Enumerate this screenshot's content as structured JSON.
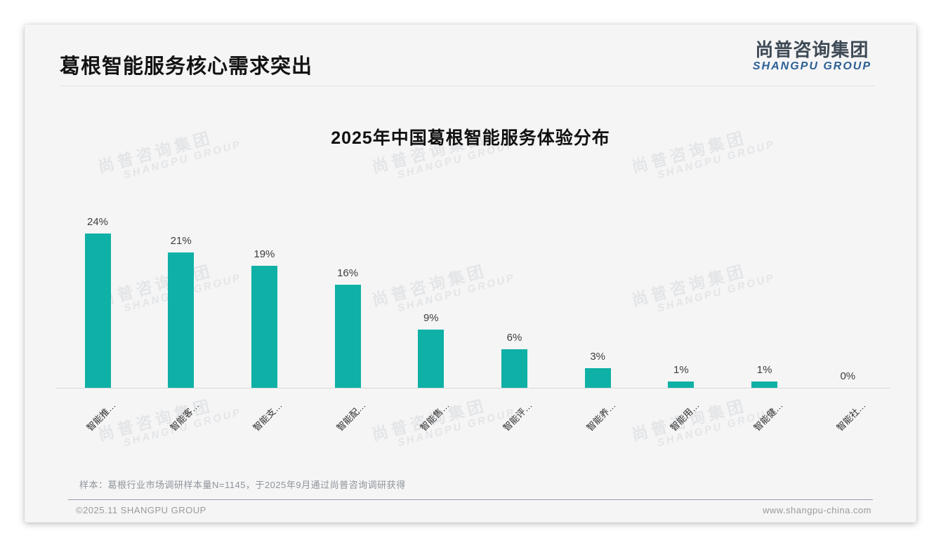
{
  "header": {
    "title": "葛根智能服务核心需求突出"
  },
  "logo": {
    "cn": "尚普咨询集团",
    "en": "SHANGPU GROUP"
  },
  "watermark": {
    "cn": "尚普咨询集团",
    "en": "SHANGPU GROUP"
  },
  "chart_data": {
    "type": "bar",
    "title": "2025年中国葛根智能服务体验分布",
    "categories": [
      "智能推…",
      "智能客…",
      "智能支…",
      "智能配…",
      "智能售…",
      "智能评…",
      "智能养…",
      "智能用…",
      "智能健…",
      "智能社…"
    ],
    "values": [
      24,
      21,
      19,
      16,
      9,
      6,
      3,
      1,
      1,
      0
    ],
    "value_labels": [
      "24%",
      "21%",
      "19%",
      "16%",
      "9%",
      "6%",
      "3%",
      "1%",
      "1%",
      "0%"
    ],
    "bar_color": "#0FB0A5",
    "ylim": [
      0,
      26
    ],
    "grid": false,
    "legend": "none",
    "x_tick_rotation": 45,
    "xlabel": "",
    "ylabel": ""
  },
  "note": {
    "text": "样本：葛根行业市场调研样本量N=1145，于2025年9月通过尚普咨询调研获得"
  },
  "footer": {
    "copyright": "©2025.11 SHANGPU GROUP",
    "website": "www.shangpu-china.com"
  },
  "colors": {
    "bar": "#0FB0A5",
    "logo_blue": "#2B5F94",
    "logo_dark": "#3E4A55",
    "slide_bg": "#F5F5F6"
  }
}
